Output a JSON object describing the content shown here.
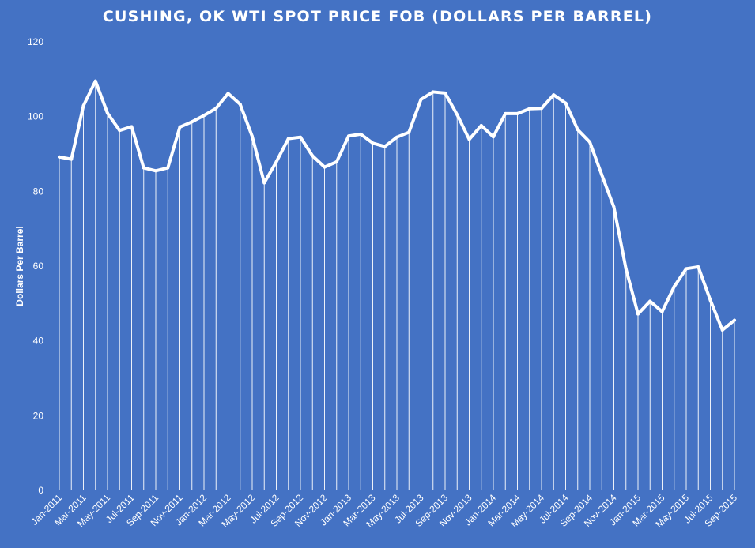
{
  "colors": {
    "background": "#4472C4",
    "line": "#FFFFFF",
    "drop_lines": "#FFFFFF",
    "text": "#FFFFFF"
  },
  "chart_data": {
    "type": "line",
    "title": "CUSHING, OK WTI SPOT PRICE FOB (DOLLARS PER BARREL)",
    "xlabel": "",
    "ylabel": "Dollars Per Barrel",
    "ylim": [
      0,
      120
    ],
    "yticks": [
      0,
      20,
      40,
      60,
      80,
      100,
      120
    ],
    "grid": false,
    "legend": "none",
    "drop_lines": true,
    "categories": [
      "Jan-2011",
      "Feb-2011",
      "Mar-2011",
      "Apr-2011",
      "May-2011",
      "Jun-2011",
      "Jul-2011",
      "Aug-2011",
      "Sep-2011",
      "Oct-2011",
      "Nov-2011",
      "Dec-2011",
      "Jan-2012",
      "Feb-2012",
      "Mar-2012",
      "Apr-2012",
      "May-2012",
      "Jun-2012",
      "Jul-2012",
      "Aug-2012",
      "Sep-2012",
      "Oct-2012",
      "Nov-2012",
      "Dec-2012",
      "Jan-2013",
      "Feb-2013",
      "Mar-2013",
      "Apr-2013",
      "May-2013",
      "Jun-2013",
      "Jul-2013",
      "Aug-2013",
      "Sep-2013",
      "Oct-2013",
      "Nov-2013",
      "Dec-2013",
      "Jan-2014",
      "Feb-2014",
      "Mar-2014",
      "Apr-2014",
      "May-2014",
      "Jun-2014",
      "Jul-2014",
      "Aug-2014",
      "Sep-2014",
      "Oct-2014",
      "Nov-2014",
      "Dec-2014",
      "Jan-2015",
      "Feb-2015",
      "Mar-2015",
      "Apr-2015",
      "May-2015",
      "Jun-2015",
      "Jul-2015",
      "Aug-2015",
      "Sep-2015"
    ],
    "tick_labels": [
      "Jan-2011",
      "Mar-2011",
      "May-2011",
      "Jul-2011",
      "Sep-2011",
      "Nov-2011",
      "Jan-2012",
      "Mar-2012",
      "May-2012",
      "Jul-2012",
      "Sep-2012",
      "Nov-2012",
      "Jan-2013",
      "Mar-2013",
      "May-2013",
      "Jul-2013",
      "Sep-2013",
      "Nov-2013",
      "Jan-2014",
      "Mar-2014",
      "May-2014",
      "Jul-2014",
      "Sep-2014",
      "Nov-2014",
      "Jan-2015",
      "Mar-2015",
      "May-2015",
      "Jul-2015",
      "Sep-2015"
    ],
    "series": [
      {
        "values": [
          89.2,
          88.6,
          102.9,
          109.5,
          100.9,
          96.3,
          97.3,
          86.3,
          85.5,
          86.3,
          97.2,
          98.6,
          100.3,
          102.2,
          106.2,
          103.3,
          94.7,
          82.3,
          87.9,
          94.1,
          94.5,
          89.5,
          86.5,
          87.9,
          94.8,
          95.3,
          92.9,
          92.0,
          94.5,
          95.8,
          104.6,
          106.6,
          106.3,
          100.5,
          93.9,
          97.6,
          94.6,
          100.8,
          100.8,
          102.1,
          102.2,
          105.8,
          103.6,
          96.5,
          93.2,
          84.4,
          75.8,
          59.3,
          47.2,
          50.6,
          47.8,
          54.5,
          59.3,
          59.8,
          50.9,
          42.9,
          45.5
        ]
      }
    ]
  }
}
